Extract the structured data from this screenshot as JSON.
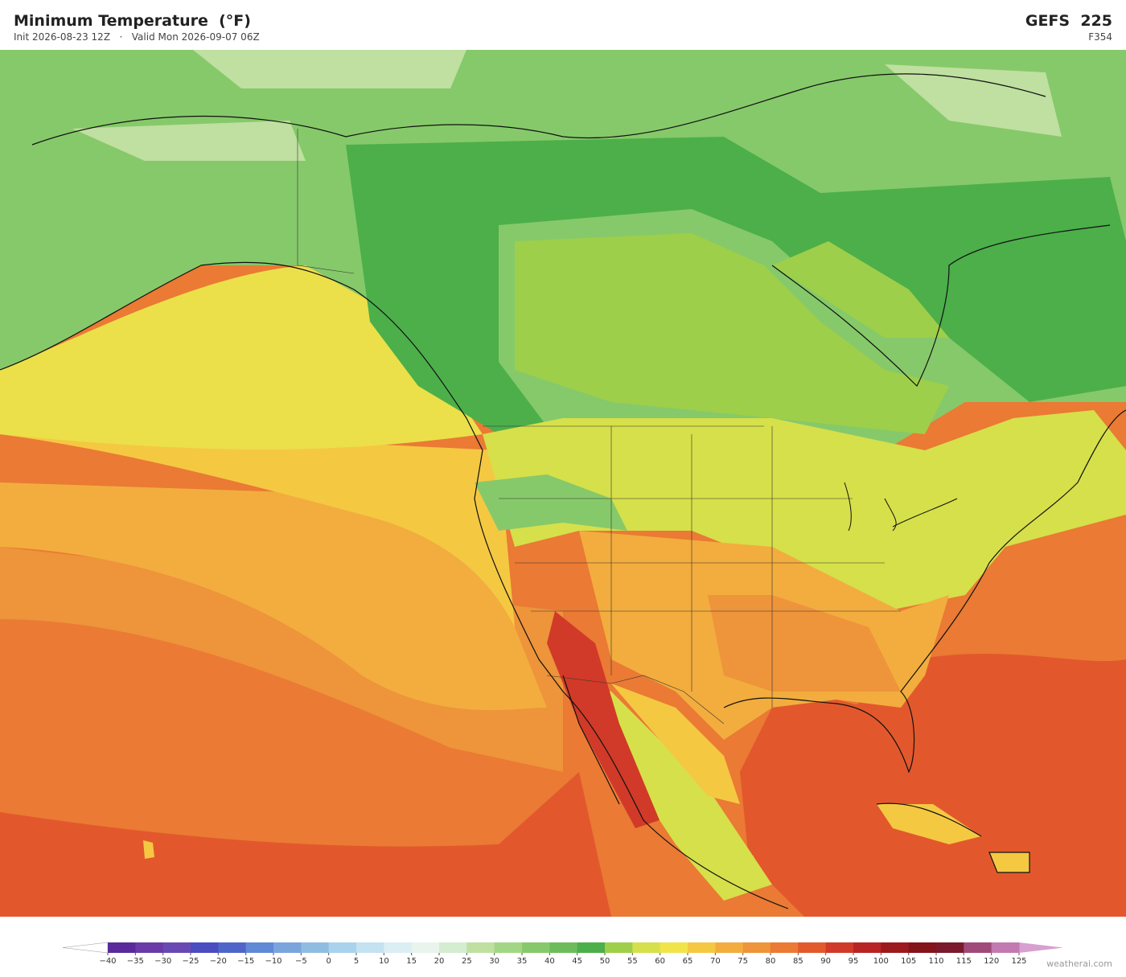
{
  "header": {
    "title": "Minimum Temperature  (°F)",
    "init": "Init 2026-08-23 12Z",
    "separator": "·",
    "valid": "Valid Mon 2026-09-07 06Z",
    "model": "GEFS  225",
    "forecast_hour": "F354"
  },
  "colorbar": {
    "ticks": [
      {
        "value": -40,
        "label": "−40"
      },
      {
        "value": -35,
        "label": "−35"
      },
      {
        "value": -30,
        "label": "−30"
      },
      {
        "value": -25,
        "label": "−25"
      },
      {
        "value": -20,
        "label": "−20"
      },
      {
        "value": -15,
        "label": "−15"
      },
      {
        "value": -10,
        "label": "−10"
      },
      {
        "value": -5,
        "label": "−5"
      },
      0,
      5,
      10,
      15,
      20,
      25,
      30,
      35,
      40,
      45,
      50,
      55,
      60,
      65,
      70,
      75,
      80,
      85,
      90,
      95,
      100,
      105,
      110,
      115,
      120,
      125
    ],
    "colors": [
      "#5a2a9a",
      "#6a3aa6",
      "#6a48b4",
      "#4a4cc0",
      "#4f66c8",
      "#6089d6",
      "#7aa4dc",
      "#8fbde2",
      "#a9d2ec",
      "#c4e2f0",
      "#dbeef4",
      "#e8f4ec",
      "#d4ecd0",
      "#bfe0a0",
      "#a2d684",
      "#86c96a",
      "#6cbd5a",
      "#4caf4a",
      "#9ecf4a",
      "#d6e04a",
      "#f0e44a",
      "#f5c842",
      "#f2ad3e",
      "#ee943a",
      "#ea7a34",
      "#e25a2c",
      "#d13a28",
      "#b82424",
      "#9c1a1e",
      "#82141a",
      "#7a1a2c",
      "#a04a7a",
      "#c27ab0"
    ],
    "under_color": "#ffffff",
    "over_color": "#d8a0d0"
  },
  "credit": "weatherai.com"
}
